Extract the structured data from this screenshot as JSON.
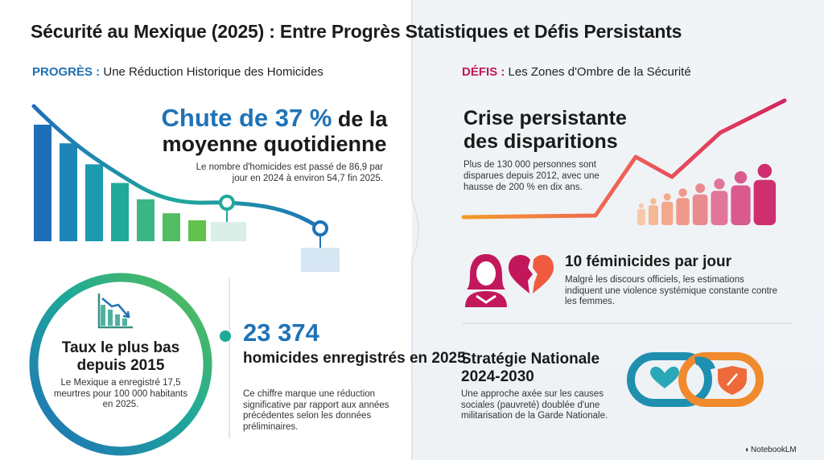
{
  "title": "Sécurité au Mexique (2025) : Entre Progrès Statistiques et Défis Persistants",
  "progress": {
    "heading_kw": "PROGRÈS :",
    "heading_rest": " Une Réduction Historique des Homicides",
    "chute": {
      "highlight": "Chute de 37 %",
      "title_rest": " de la moyenne quotidienne",
      "desc": "Le nombre d'homicides est passé de 86,9 par jour en 2024 à environ 54,7 fin 2025."
    },
    "chart": {
      "type": "bar",
      "bar_heights_relative": [
        1.0,
        0.84,
        0.66,
        0.5,
        0.36,
        0.24,
        0.18
      ],
      "trend_start_value": 86.9,
      "trend_end_value": 54.7
    },
    "taux": {
      "title": "Taux le plus bas depuis 2015",
      "desc": "Le Mexique a enregistré 17,5 meurtres pour 100 000 habitants en 2025."
    },
    "homicides": {
      "number": "23 374",
      "label": "homicides enregistrés en 2025",
      "desc": "Ce chiffre marque une réduction significative par rapport aux années précédentes selon les données préliminaires."
    }
  },
  "defis": {
    "heading_kw": "DÉFIS :",
    "heading_rest": " Les Zones d'Ombre de la Sécurité",
    "crise": {
      "title_line1": "Crise persistante",
      "title_line2": "des disparitions",
      "desc": "Plus de 130 000 personnes sont disparues depuis 2012, avec une hausse de 200 % en dix ans."
    },
    "feminicides": {
      "title": "10 féminicides par jour",
      "desc": "Malgré les discours officiels, les estimations indiquent une violence systémique constante contre les femmes."
    },
    "strategie": {
      "title_line1": "Stratégie Nationale",
      "title_line2": "2024-2030",
      "desc": "Une approche axée sur les causes sociales (pauvreté) doublée d'une militarisation de la Garde Nationale."
    }
  },
  "brand": "NotebookLM",
  "icons": {
    "bar_chart": "declining-bar-chart-icon",
    "woman": "woman-icon",
    "broken_heart": "broken-heart-icon",
    "heart": "heart-icon",
    "shield": "shield-icon",
    "people": "people-growth-icon"
  },
  "colors": {
    "blue": "#1f73b7",
    "teal": "#1fa99a",
    "green": "#5cc04f",
    "magenta": "#c2185b",
    "orange": "#f08a2c"
  }
}
